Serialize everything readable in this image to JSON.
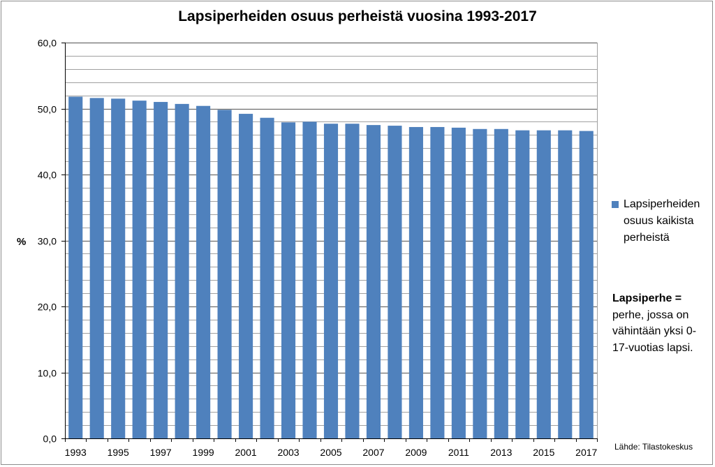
{
  "chart_data": {
    "type": "bar",
    "title": "Lapsiperheiden osuus perheistä vuosina 1993-2017",
    "ylabel": "%",
    "xlabel": "",
    "ylim": [
      0,
      60
    ],
    "yticks": [
      "0,0",
      "10,0",
      "20,0",
      "30,0",
      "40,0",
      "50,0",
      "60,0"
    ],
    "grid": true,
    "categories": [
      "1993",
      "1994",
      "1995",
      "1996",
      "1997",
      "1998",
      "1999",
      "2000",
      "2001",
      "2002",
      "2003",
      "2004",
      "2005",
      "2006",
      "2007",
      "2008",
      "2009",
      "2010",
      "2011",
      "2012",
      "2013",
      "2014",
      "2015",
      "2016",
      "2017"
    ],
    "xtick_labels": [
      "1993",
      "",
      "1995",
      "",
      "1997",
      "",
      "1999",
      "",
      "2001",
      "",
      "2003",
      "",
      "2005",
      "",
      "2007",
      "",
      "2009",
      "",
      "2011",
      "",
      "2013",
      "",
      "2015",
      "",
      "2017"
    ],
    "series": [
      {
        "name": "Lapsiperheiden osuus kaikista perheistä",
        "values": [
          51.8,
          51.6,
          51.5,
          51.2,
          51.0,
          50.7,
          50.4,
          49.8,
          49.2,
          48.6,
          47.9,
          48.0,
          47.7,
          47.7,
          47.5,
          47.4,
          47.2,
          47.2,
          47.1,
          46.9,
          46.9,
          46.7,
          46.7,
          46.7,
          46.6
        ]
      }
    ],
    "legend_position": "right",
    "colors": {
      "bar": "#4f81bd",
      "grid": "#a0a0a0",
      "axis": "#000000"
    }
  },
  "legend": {
    "label": "Lapsiperheiden osuus kaikista perheistä"
  },
  "note": {
    "heading": "Lapsiperhe =",
    "text": "perhe, jossa on vähintään yksi 0-17-vuotias lapsi."
  },
  "source": "Lähde: Tilastokeskus"
}
